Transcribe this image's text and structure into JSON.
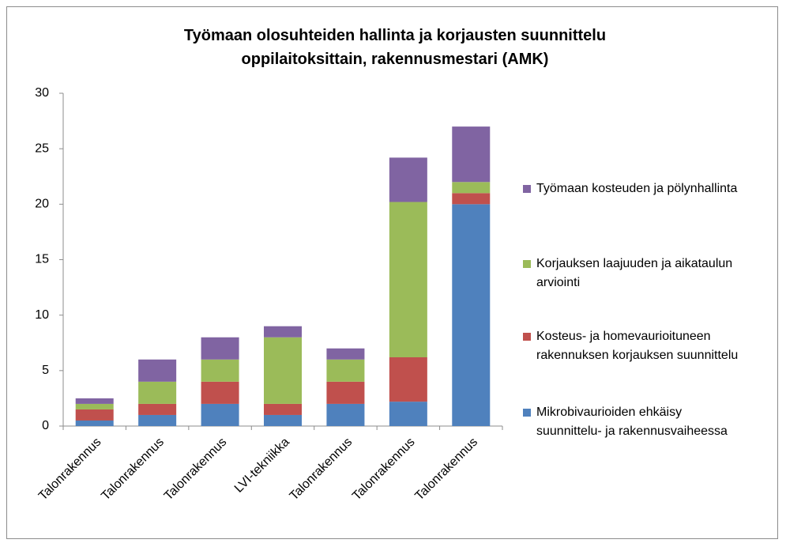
{
  "chart_data": {
    "type": "stacked-bar",
    "title": "Työmaan olosuhteiden hallinta ja korjausten suunnittelu oppilaitoksittain, rakennusmestari (AMK)",
    "categories": [
      "Talonrakennus",
      "Talonrakennus",
      "Talonrakennus",
      "LVI-tekniikka",
      "Talonrakennus",
      "Talonrakennus",
      "Talonrakennus"
    ],
    "series": [
      {
        "name": "Mikrobivaurioiden ehkäisy suunnittelu- ja rakennusvaiheessa",
        "color": "#4f81bd",
        "values": [
          0.5,
          1,
          2,
          1,
          2,
          2.2,
          20
        ]
      },
      {
        "name": "Kosteus- ja homevaurioituneen rakennuksen korjauksen suunnittelu",
        "color": "#c0504d",
        "values": [
          1,
          1,
          2,
          1,
          2,
          4,
          1
        ]
      },
      {
        "name": "Korjauksen laajuuden ja aikataulun arviointi",
        "color": "#9bbb59",
        "values": [
          0.5,
          2,
          2,
          6,
          2,
          14,
          1
        ]
      },
      {
        "name": "Työmaan kosteuden ja pölynhallinta",
        "color": "#8064a2",
        "values": [
          0.5,
          2,
          2,
          1,
          1,
          4,
          5
        ]
      }
    ],
    "ylim": [
      0,
      30
    ],
    "yticks": [
      0,
      5,
      10,
      15,
      20,
      25,
      30
    ],
    "grid": false,
    "legend": "right"
  }
}
